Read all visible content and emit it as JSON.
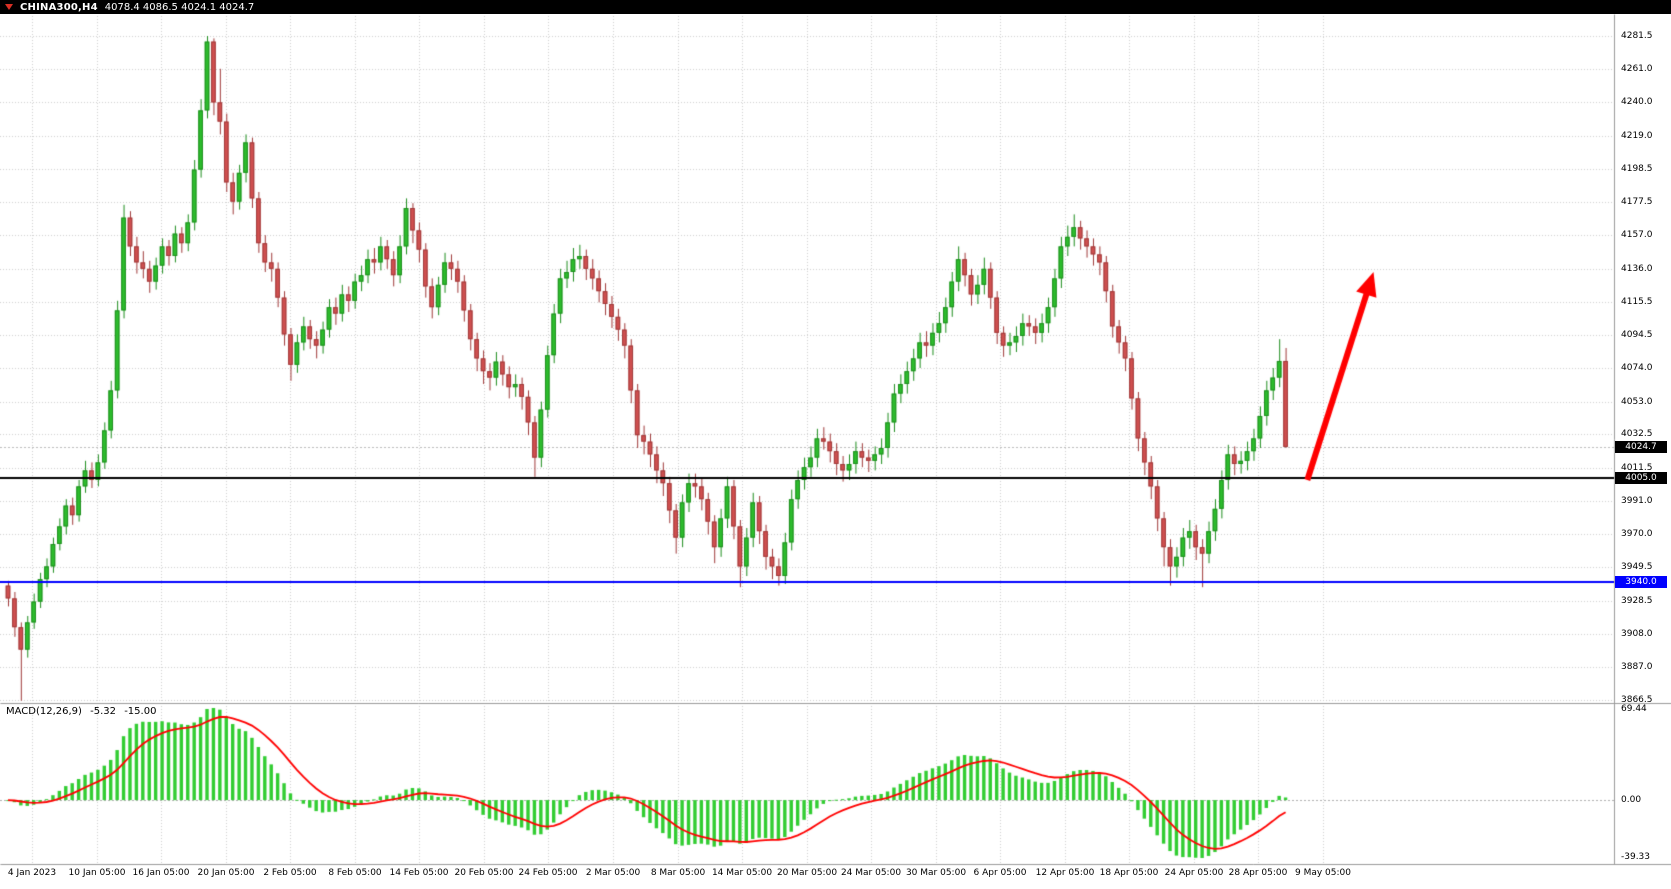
{
  "header": {
    "symbol_period": "CHINA300,H4",
    "ohlc_text": "4078.4 4086.5 4024.1 4024.7"
  },
  "chart_data": {
    "type": "candlestick",
    "symbol": "CHINA300",
    "timeframe": "H4",
    "title": "CHINA300,H4  4078.4 4086.5 4024.1 4024.7",
    "price_axis": {
      "ticks": [
        "4281.5",
        "4261.0",
        "4240.0",
        "4219.0",
        "4198.5",
        "4177.5",
        "4157.0",
        "4136.0",
        "4115.5",
        "4094.5",
        "4074.0",
        "4053.0",
        "4032.5",
        "4011.5",
        "3991.0",
        "3970.0",
        "3949.5",
        "3928.5",
        "3908.0",
        "3887.0",
        "3866.5"
      ]
    },
    "time_axis": {
      "ticks": [
        "4 Jan 2023",
        "10 Jan 05:00",
        "16 Jan 05:00",
        "20 Jan 05:00",
        "2 Feb 05:00",
        "8 Feb 05:00",
        "14 Feb 05:00",
        "20 Feb 05:00",
        "24 Feb 05:00",
        "2 Mar 05:00",
        "8 Mar 05:00",
        "14 Mar 05:00",
        "20 Mar 05:00",
        "24 Mar 05:00",
        "30 Mar 05:00",
        "6 Apr 05:00",
        "12 Apr 05:00",
        "18 Apr 05:00",
        "24 Apr 05:00",
        "28 Apr 05:00",
        "9 May 05:00"
      ]
    },
    "price_lines": [
      {
        "price": 4024.7,
        "label": "4024.7",
        "type": "bid-price",
        "line_color": "#bbbbbb",
        "label_bg": "#000000",
        "label_fg": "#ffffff"
      },
      {
        "price": 4005.0,
        "label": "4005.0",
        "type": "horizontal-line",
        "line_color": "#000000",
        "label_bg": "#000000",
        "label_fg": "#ffffff"
      },
      {
        "price": 3940.0,
        "label": "3940.0",
        "type": "horizontal-line",
        "line_color": "#0000ff",
        "label_bg": "#0000ff",
        "label_fg": "#ffffff"
      }
    ],
    "candles": [
      [
        3938,
        3941,
        3925,
        3930
      ],
      [
        3930,
        3934,
        3906,
        3912
      ],
      [
        3912,
        3915,
        3866,
        3898
      ],
      [
        3898,
        3919,
        3893,
        3915
      ],
      [
        3915,
        3933,
        3911,
        3928
      ],
      [
        3928,
        3946,
        3924,
        3942
      ],
      [
        3942,
        3955,
        3937,
        3950
      ],
      [
        3950,
        3968,
        3946,
        3964
      ],
      [
        3964,
        3980,
        3960,
        3975
      ],
      [
        3975,
        3992,
        3970,
        3988
      ],
      [
        3988,
        3993,
        3976,
        3982
      ],
      [
        3982,
        4004,
        3978,
        4000
      ],
      [
        4000,
        4016,
        3996,
        4010
      ],
      [
        4010,
        4015,
        3999,
        4004
      ],
      [
        4004,
        4020,
        4000,
        4015
      ],
      [
        4015,
        4040,
        4011,
        4035
      ],
      [
        4035,
        4066,
        4030,
        4060
      ],
      [
        4060,
        4116,
        4055,
        4110
      ],
      [
        4110,
        4176,
        4105,
        4168
      ],
      [
        4168,
        4172,
        4144,
        4150
      ],
      [
        4150,
        4156,
        4133,
        4140
      ],
      [
        4140,
        4147,
        4130,
        4136
      ],
      [
        4136,
        4141,
        4121,
        4128
      ],
      [
        4128,
        4143,
        4123,
        4138
      ],
      [
        4138,
        4155,
        4133,
        4150
      ],
      [
        4150,
        4154,
        4138,
        4144
      ],
      [
        4144,
        4163,
        4140,
        4158
      ],
      [
        4158,
        4162,
        4146,
        4152
      ],
      [
        4152,
        4170,
        4147,
        4165
      ],
      [
        4165,
        4204,
        4160,
        4198
      ],
      [
        4198,
        4242,
        4193,
        4235
      ],
      [
        4235,
        4281.5,
        4230,
        4278
      ],
      [
        4278,
        4280,
        4232,
        4240
      ],
      [
        4240,
        4261,
        4220,
        4228
      ],
      [
        4228,
        4233,
        4184,
        4190
      ],
      [
        4190,
        4196,
        4170,
        4178
      ],
      [
        4178,
        4201,
        4173,
        4196
      ],
      [
        4196,
        4220,
        4190,
        4215
      ],
      [
        4215,
        4218,
        4174,
        4180
      ],
      [
        4180,
        4184,
        4146,
        4152
      ],
      [
        4152,
        4157,
        4134,
        4140
      ],
      [
        4140,
        4146,
        4128,
        4136
      ],
      [
        4136,
        4140,
        4112,
        4118
      ],
      [
        4118,
        4122,
        4088,
        4095
      ],
      [
        4095,
        4099,
        4066,
        4076
      ],
      [
        4076,
        4095,
        4071,
        4090
      ],
      [
        4090,
        4106,
        4085,
        4100
      ],
      [
        4100,
        4104,
        4086,
        4092
      ],
      [
        4092,
        4097,
        4080,
        4088
      ],
      [
        4088,
        4103,
        4083,
        4098
      ],
      [
        4098,
        4117,
        4093,
        4112
      ],
      [
        4112,
        4118,
        4101,
        4108
      ],
      [
        4108,
        4126,
        4103,
        4120
      ],
      [
        4120,
        4125,
        4109,
        4116
      ],
      [
        4116,
        4133,
        4111,
        4128
      ],
      [
        4128,
        4138,
        4122,
        4132
      ],
      [
        4132,
        4148,
        4127,
        4142
      ],
      [
        4142,
        4149,
        4133,
        4140
      ],
      [
        4140,
        4156,
        4135,
        4150
      ],
      [
        4150,
        4154,
        4136,
        4142
      ],
      [
        4142,
        4147,
        4125,
        4132
      ],
      [
        4132,
        4157,
        4127,
        4150
      ],
      [
        4150,
        4180,
        4145,
        4174
      ],
      [
        4174,
        4177,
        4152,
        4160
      ],
      [
        4160,
        4165,
        4140,
        4148
      ],
      [
        4148,
        4152,
        4118,
        4125
      ],
      [
        4125,
        4130,
        4105,
        4112
      ],
      [
        4112,
        4131,
        4107,
        4126
      ],
      [
        4126,
        4146,
        4121,
        4140
      ],
      [
        4140,
        4145,
        4129,
        4136
      ],
      [
        4136,
        4141,
        4121,
        4128
      ],
      [
        4128,
        4132,
        4103,
        4110
      ],
      [
        4110,
        4114,
        4085,
        4092
      ],
      [
        4092,
        4096,
        4072,
        4080
      ],
      [
        4080,
        4085,
        4064,
        4072
      ],
      [
        4072,
        4077,
        4060,
        4068
      ],
      [
        4068,
        4084,
        4063,
        4078
      ],
      [
        4078,
        4082,
        4063,
        4070
      ],
      [
        4070,
        4075,
        4055,
        4062
      ],
      [
        4062,
        4070,
        4056,
        4064
      ],
      [
        4064,
        4068,
        4048,
        4056
      ],
      [
        4056,
        4060,
        4032,
        4040
      ],
      [
        4040,
        4044,
        4006,
        4018
      ],
      [
        4018,
        4053,
        4012,
        4048
      ],
      [
        4048,
        4088,
        4043,
        4082
      ],
      [
        4082,
        4114,
        4077,
        4108
      ],
      [
        4108,
        4136,
        4102,
        4130
      ],
      [
        4130,
        4141,
        4124,
        4134
      ],
      [
        4134,
        4149,
        4128,
        4142
      ],
      [
        4142,
        4151,
        4136,
        4144
      ],
      [
        4144,
        4148,
        4129,
        4136
      ],
      [
        4136,
        4142,
        4123,
        4130
      ],
      [
        4130,
        4135,
        4115,
        4122
      ],
      [
        4122,
        4127,
        4107,
        4114
      ],
      [
        4114,
        4119,
        4099,
        4106
      ],
      [
        4106,
        4111,
        4091,
        4098
      ],
      [
        4098,
        4102,
        4080,
        4088
      ],
      [
        4088,
        4092,
        4052,
        4060
      ],
      [
        4060,
        4064,
        4024,
        4032
      ],
      [
        4032,
        4038,
        4020,
        4028
      ],
      [
        4028,
        4033,
        4012,
        4020
      ],
      [
        4020,
        4025,
        4002,
        4010
      ],
      [
        4010,
        4015,
        3994,
        4002
      ],
      [
        4002,
        4006,
        3977,
        3985
      ],
      [
        3985,
        3989,
        3958,
        3968
      ],
      [
        3968,
        3995,
        3962,
        3990
      ],
      [
        3990,
        4008,
        3984,
        4002
      ],
      [
        4002,
        4008,
        3993,
        4000
      ],
      [
        4000,
        4005,
        3985,
        3992
      ],
      [
        3992,
        3996,
        3970,
        3978
      ],
      [
        3978,
        3982,
        3952,
        3962
      ],
      [
        3962,
        3986,
        3956,
        3980
      ],
      [
        3980,
        4006,
        3974,
        4000
      ],
      [
        4000,
        4004,
        3967,
        3975
      ],
      [
        3975,
        3979,
        3937,
        3950
      ],
      [
        3950,
        3974,
        3944,
        3968
      ],
      [
        3968,
        3996,
        3962,
        3990
      ],
      [
        3990,
        3994,
        3964,
        3972
      ],
      [
        3972,
        3976,
        3948,
        3956
      ],
      [
        3956,
        3961,
        3942,
        3950
      ],
      [
        3950,
        3955,
        3938,
        3944
      ],
      [
        3944,
        3971,
        3939,
        3965
      ],
      [
        3965,
        3998,
        3960,
        3992
      ],
      [
        3992,
        4010,
        3986,
        4004
      ],
      [
        4004,
        4018,
        3998,
        4012
      ],
      [
        4012,
        4025,
        4006,
        4018
      ],
      [
        4018,
        4036,
        4012,
        4030
      ],
      [
        4030,
        4037,
        4023,
        4028
      ],
      [
        4028,
        4033,
        4015,
        4022
      ],
      [
        4022,
        4027,
        4007,
        4014
      ],
      [
        4014,
        4019,
        4003,
        4010
      ],
      [
        4010,
        4020,
        4004,
        4014
      ],
      [
        4014,
        4028,
        4008,
        4022
      ],
      [
        4022,
        4027,
        4012,
        4018
      ],
      [
        4018,
        4023,
        4009,
        4016
      ],
      [
        4016,
        4025,
        4010,
        4020
      ],
      [
        4020,
        4030,
        4014,
        4024
      ],
      [
        4024,
        4046,
        4018,
        4040
      ],
      [
        4040,
        4064,
        4034,
        4058
      ],
      [
        4058,
        4070,
        4052,
        4064
      ],
      [
        4064,
        4078,
        4058,
        4072
      ],
      [
        4072,
        4086,
        4066,
        4080
      ],
      [
        4080,
        4096,
        4074,
        4090
      ],
      [
        4090,
        4097,
        4081,
        4088
      ],
      [
        4088,
        4102,
        4082,
        4096
      ],
      [
        4096,
        4109,
        4090,
        4102
      ],
      [
        4102,
        4118,
        4096,
        4112
      ],
      [
        4112,
        4134,
        4106,
        4128
      ],
      [
        4128,
        4150,
        4122,
        4142
      ],
      [
        4142,
        4146,
        4125,
        4132
      ],
      [
        4132,
        4136,
        4113,
        4120
      ],
      [
        4120,
        4132,
        4114,
        4126
      ],
      [
        4126,
        4143,
        4120,
        4136
      ],
      [
        4136,
        4140,
        4111,
        4118
      ],
      [
        4118,
        4122,
        4089,
        4096
      ],
      [
        4096,
        4100,
        4081,
        4088
      ],
      [
        4088,
        4096,
        4082,
        4090
      ],
      [
        4090,
        4100,
        4084,
        4094
      ],
      [
        4094,
        4108,
        4088,
        4102
      ],
      [
        4102,
        4107,
        4094,
        4100
      ],
      [
        4100,
        4105,
        4089,
        4096
      ],
      [
        4096,
        4108,
        4090,
        4102
      ],
      [
        4102,
        4118,
        4096,
        4112
      ],
      [
        4112,
        4136,
        4106,
        4130
      ],
      [
        4130,
        4156,
        4124,
        4150
      ],
      [
        4150,
        4163,
        4144,
        4156
      ],
      [
        4156,
        4170,
        4150,
        4162
      ],
      [
        4162,
        4166,
        4148,
        4155
      ],
      [
        4155,
        4160,
        4143,
        4150
      ],
      [
        4150,
        4155,
        4138,
        4145
      ],
      [
        4145,
        4150,
        4132,
        4140
      ],
      [
        4140,
        4144,
        4115,
        4122
      ],
      [
        4122,
        4126,
        4093,
        4100
      ],
      [
        4100,
        4104,
        4083,
        4090
      ],
      [
        4090,
        4094,
        4072,
        4080
      ],
      [
        4080,
        4084,
        4048,
        4055
      ],
      [
        4055,
        4059,
        4022,
        4030
      ],
      [
        4030,
        4034,
        4007,
        4015
      ],
      [
        4015,
        4019,
        3992,
        4000
      ],
      [
        4000,
        4004,
        3972,
        3980
      ],
      [
        3980,
        3984,
        3950,
        3962
      ],
      [
        3962,
        3967,
        3938,
        3950
      ],
      [
        3950,
        3962,
        3943,
        3956
      ],
      [
        3956,
        3974,
        3950,
        3968
      ],
      [
        3968,
        3979,
        3961,
        3972
      ],
      [
        3972,
        3976,
        3954,
        3962
      ],
      [
        3962,
        3967,
        3937,
        3958
      ],
      [
        3958,
        3978,
        3952,
        3972
      ],
      [
        3972,
        3992,
        3966,
        3986
      ],
      [
        3986,
        4010,
        3980,
        4004
      ],
      [
        4004,
        4026,
        3998,
        4020
      ],
      [
        4020,
        4025,
        4007,
        4014
      ],
      [
        4014,
        4022,
        4008,
        4016
      ],
      [
        4016,
        4028,
        4010,
        4022
      ],
      [
        4022,
        4036,
        4016,
        4030
      ],
      [
        4030,
        4050,
        4024,
        4044
      ],
      [
        4044,
        4066,
        4038,
        4060
      ],
      [
        4060,
        4074,
        4054,
        4068
      ],
      [
        4068,
        4092,
        4062,
        4078.4
      ],
      [
        4078.4,
        4086.5,
        4024.1,
        4024.7
      ]
    ],
    "macd": {
      "label": "MACD(12,26,9)",
      "value_main": "-5.32",
      "value_signal": "-15.00",
      "params": {
        "fast": 12,
        "slow": 26,
        "signal": 9
      },
      "scale_labels": [
        "69.44",
        "0.00",
        "-39.33"
      ],
      "histogram_color": "#32cd32",
      "signal_color": "#ff0000"
    },
    "annotation_arrow": {
      "color": "#ff0000",
      "from_x_frac": 0.81,
      "from_price": 4004,
      "to_x_frac": 0.851,
      "to_price": 4134
    },
    "colors": {
      "background": "#ffffff",
      "grid": "#cfcfcf",
      "bull_fill": "#2dbd2d",
      "bull_border": "#1e8e1e",
      "bear_fill": "#d05050",
      "bear_border": "#a03a3a",
      "separator": "#9a9a9a",
      "axis_text": "#000000",
      "title_bar_bg": "#000000",
      "title_bar_fg": "#ffffff"
    }
  }
}
